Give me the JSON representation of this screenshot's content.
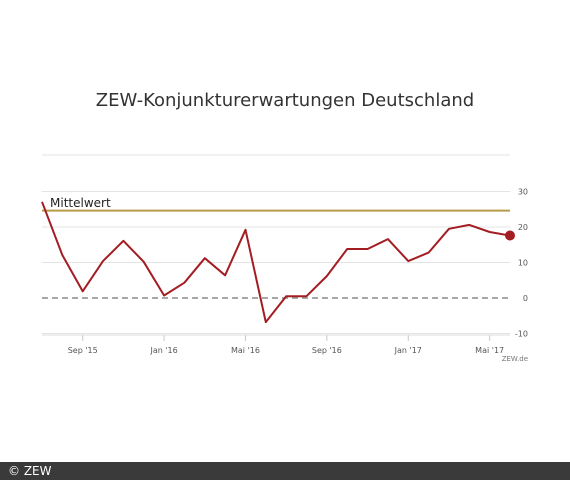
{
  "chart_data": {
    "type": "line",
    "title": "ZEW-Konjunkturerwartungen Deutschland",
    "x_tick_labels": [
      "Sep '15",
      "Jan '16",
      "Mai '16",
      "Sep '16",
      "Jan '17",
      "Mai '17"
    ],
    "y_ticks": [
      30,
      20,
      10,
      0,
      -10
    ],
    "ylim": [
      -10,
      32
    ],
    "series": [
      {
        "values": [
          27.1,
          12.1,
          1.9,
          10.4,
          16.1,
          10.2,
          0.7,
          4.3,
          11.2,
          6.4,
          19.2,
          -6.8,
          0.5,
          0.5,
          6.2,
          13.8,
          13.8,
          16.6,
          10.4,
          12.8,
          19.5,
          20.6,
          18.6,
          17.6
        ],
        "color": "#a31d22"
      }
    ],
    "mean_line": {
      "label": "Mittelwert",
      "value": 24.6,
      "color": "#b89a4a"
    },
    "source": "ZEW.de",
    "grid": true
  },
  "footer": {
    "copyright": "© ZEW"
  }
}
